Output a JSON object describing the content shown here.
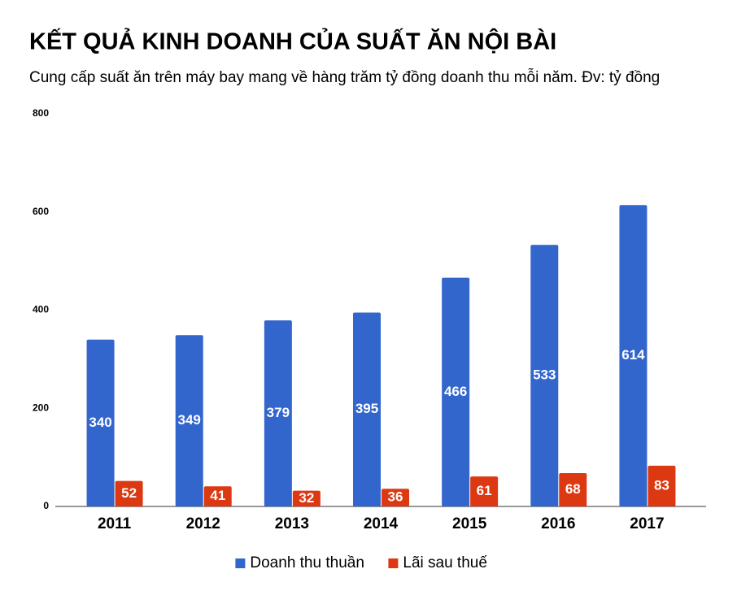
{
  "chart_data": {
    "type": "bar",
    "title": "KẾT QUẢ KINH DOANH CỦA SUẤT ĂN NỘI BÀI",
    "subtitle": "Cung cấp suất ăn trên máy bay mang về hàng trăm tỷ đồng doanh thu mỗi năm. Đv: tỷ đồng",
    "categories": [
      "2011",
      "2012",
      "2013",
      "2014",
      "2015",
      "2016",
      "2017"
    ],
    "series": [
      {
        "name": "Doanh thu thuần",
        "color": "#3366cc",
        "values": [
          340,
          349,
          379,
          395,
          466,
          533,
          614
        ]
      },
      {
        "name": "Lãi sau thuế",
        "color": "#dc3912",
        "values": [
          52,
          41,
          32,
          36,
          61,
          68,
          83
        ]
      }
    ],
    "ylim": [
      0,
      800
    ],
    "yticks": [
      0,
      200,
      400,
      600,
      800
    ],
    "grid": false,
    "legend": "bottom"
  }
}
